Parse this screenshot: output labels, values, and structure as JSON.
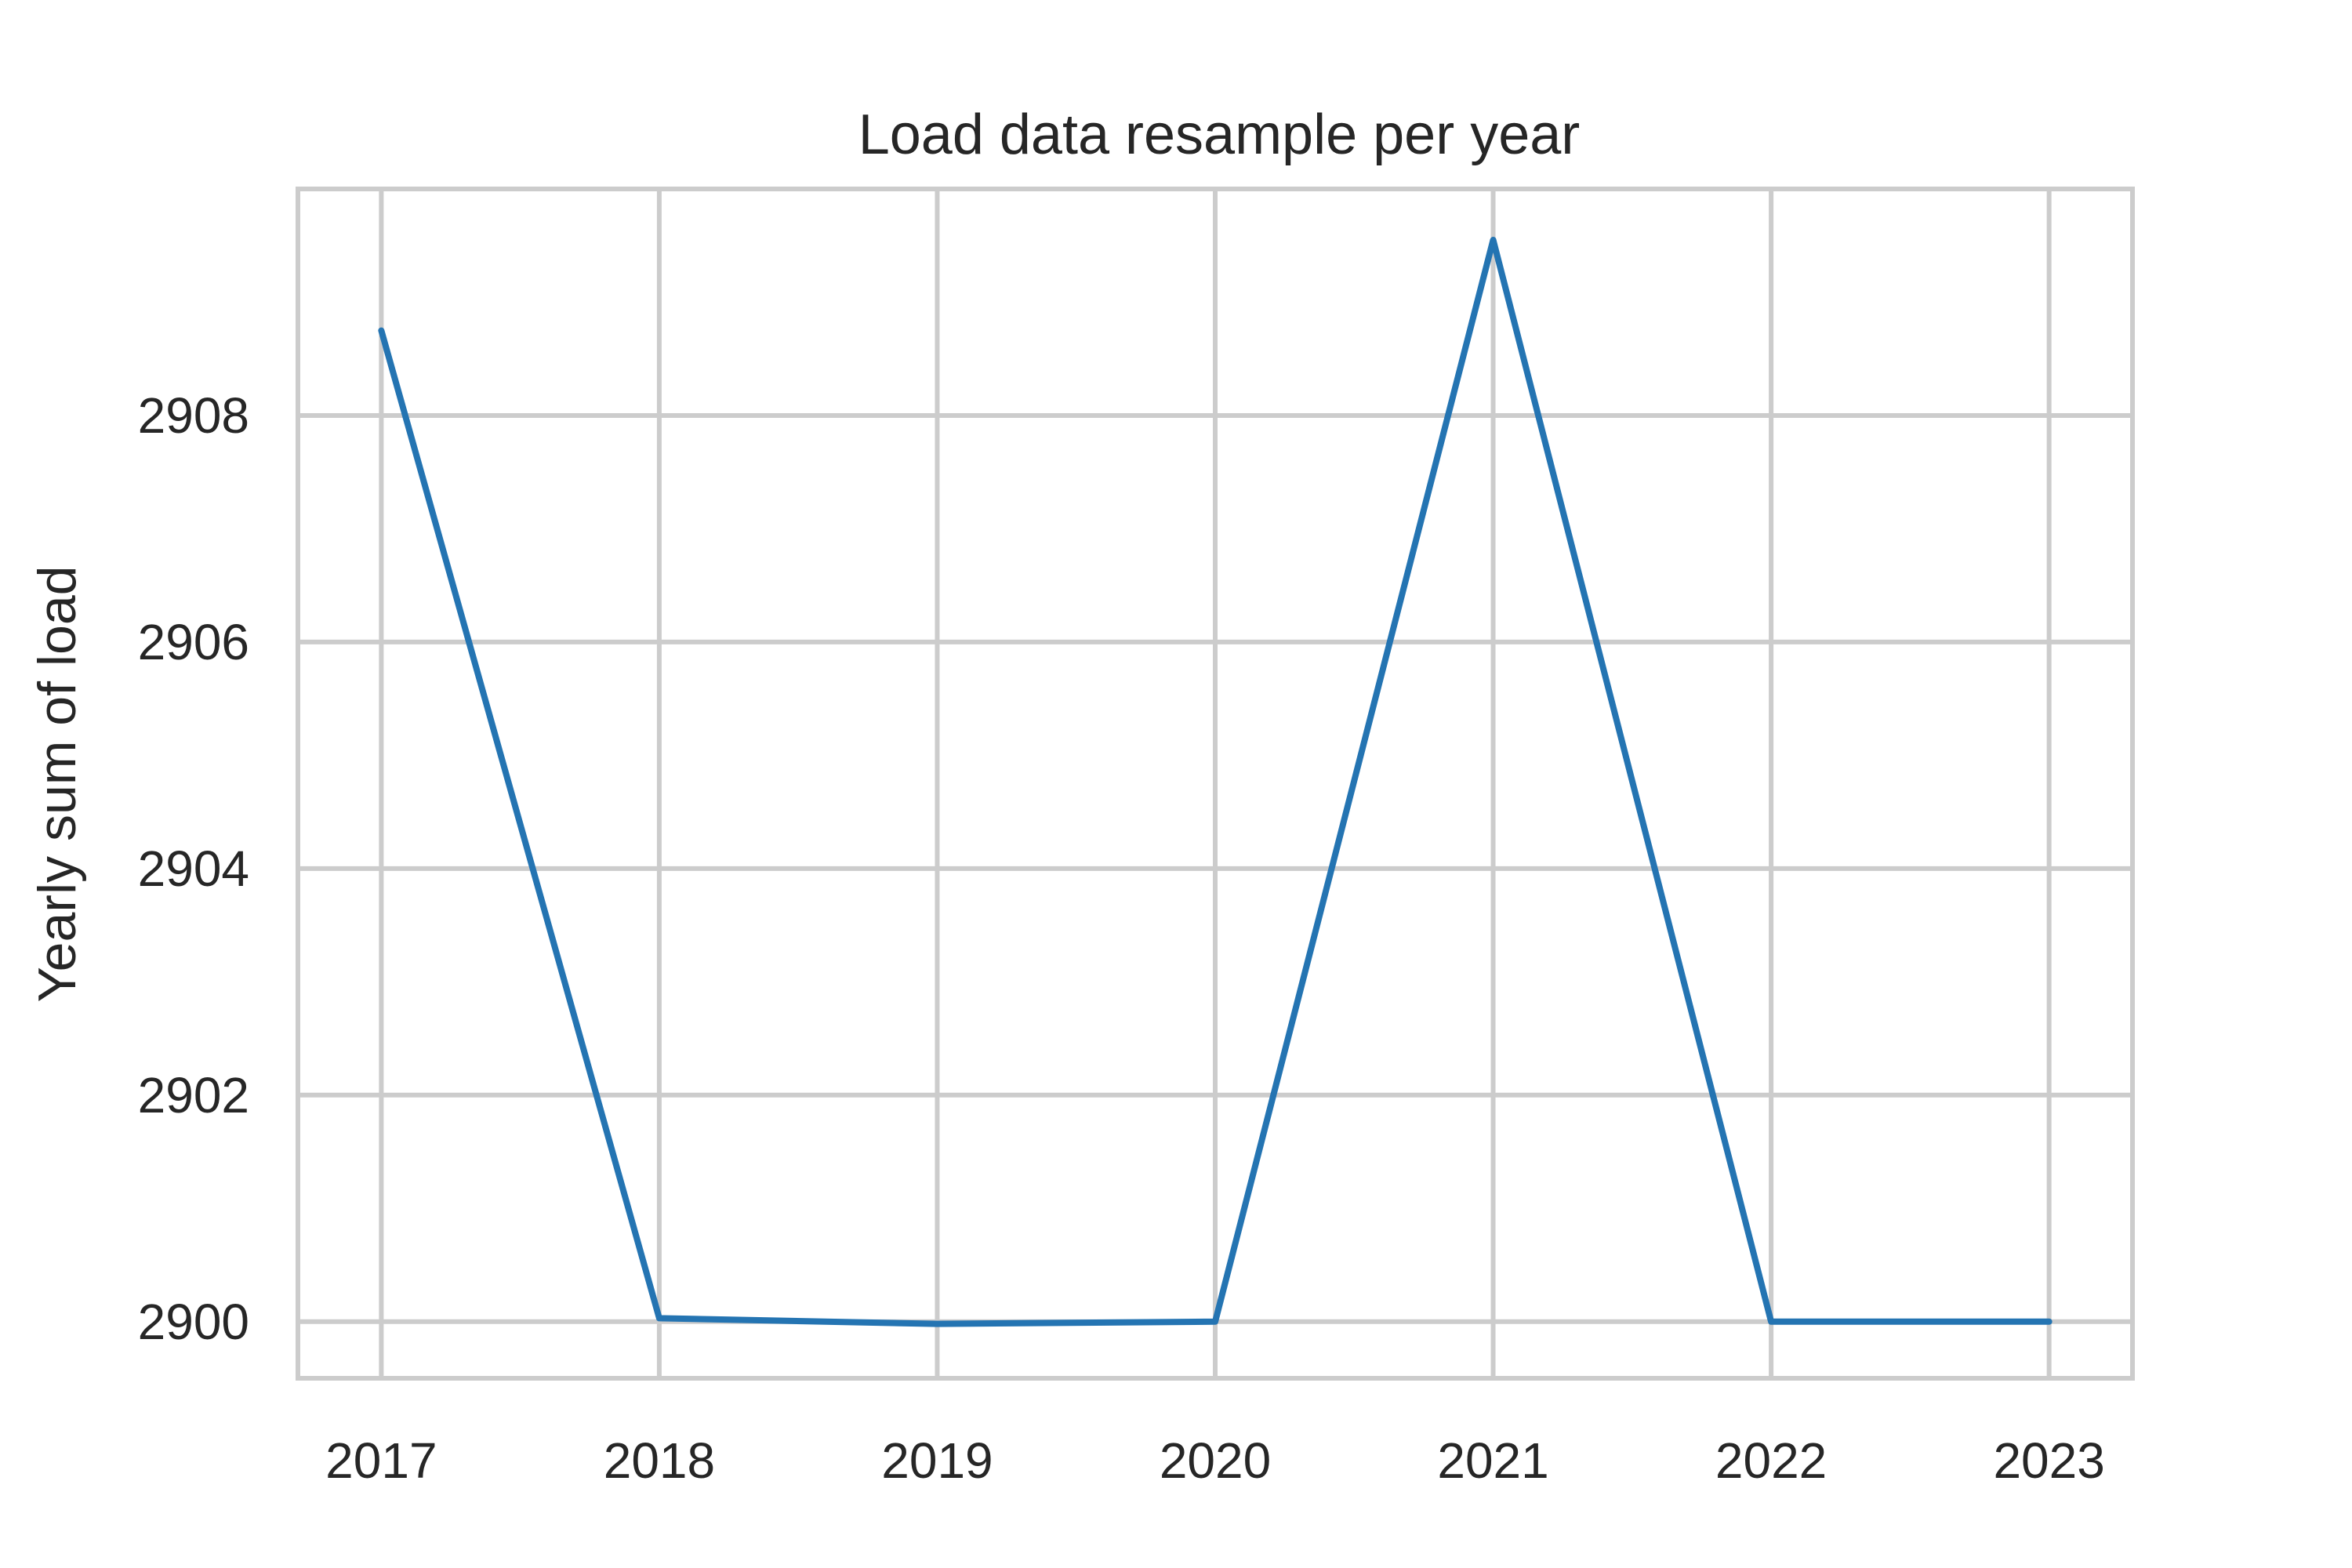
{
  "chart_data": {
    "type": "line",
    "title": "Load data resample per year",
    "xlabel": "",
    "ylabel": "Yearly sum of load",
    "x": [
      2017,
      2018,
      2019,
      2020,
      2021,
      2022,
      2023
    ],
    "x_tick_labels": [
      "2017",
      "2018",
      "2019",
      "2020",
      "2021",
      "2022",
      "2023"
    ],
    "y_ticks": [
      2900,
      2902,
      2904,
      2906,
      2908
    ],
    "y_tick_labels": [
      "2900",
      "2902",
      "2904",
      "2906",
      "2908"
    ],
    "series": [
      {
        "values": [
          2908.75,
          2900.03,
          2899.98,
          2900.0,
          2909.55,
          2900.0,
          2900.0
        ],
        "color": "#2474b2"
      }
    ],
    "xlim": [
      2016.7,
      2023.3
    ],
    "ylim": [
      2899.5,
      2910.0
    ],
    "grid": true,
    "legend": "none"
  }
}
